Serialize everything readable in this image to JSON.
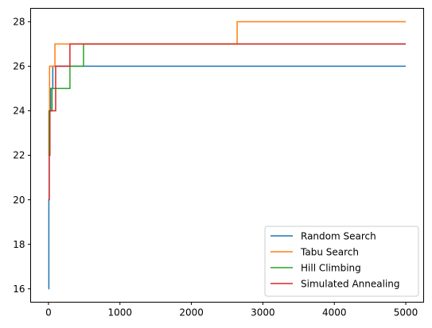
{
  "chart_data": {
    "type": "line",
    "title": "",
    "xlabel": "",
    "ylabel": "",
    "xlim": [
      -250,
      5250
    ],
    "ylim": [
      15.4,
      28.6
    ],
    "x_ticks": [
      0,
      1000,
      2000,
      3000,
      4000,
      5000
    ],
    "x_tick_labels": [
      "0",
      "1000",
      "2000",
      "3000",
      "4000",
      "5000"
    ],
    "y_ticks": [
      16,
      18,
      20,
      22,
      24,
      26,
      28
    ],
    "y_tick_labels": [
      "16",
      "18",
      "20",
      "22",
      "24",
      "26",
      "28"
    ],
    "grid": false,
    "legend_position": "lower-right",
    "step_style": "post",
    "series": [
      {
        "name": "Random Search",
        "color": "#1f77b4",
        "x": [
          0,
          5,
          10,
          20,
          30,
          60,
          5000
        ],
        "y": [
          16,
          20,
          22,
          24,
          25,
          26,
          26
        ]
      },
      {
        "name": "Tabu Search",
        "color": "#ff7f0e",
        "x": [
          0,
          5,
          15,
          90,
          2640,
          5000
        ],
        "y": [
          22,
          24,
          26,
          27,
          28,
          28
        ]
      },
      {
        "name": "Hill Climbing",
        "color": "#2ca02c",
        "x": [
          0,
          10,
          25,
          50,
          300,
          490,
          5000
        ],
        "y": [
          22,
          24,
          24,
          25,
          26,
          27,
          27
        ]
      },
      {
        "name": "Simulated Annealing",
        "color": "#d62728",
        "x": [
          0,
          10,
          20,
          60,
          100,
          300,
          5000
        ],
        "y": [
          20,
          22,
          24,
          24,
          26,
          27,
          27
        ]
      }
    ]
  }
}
